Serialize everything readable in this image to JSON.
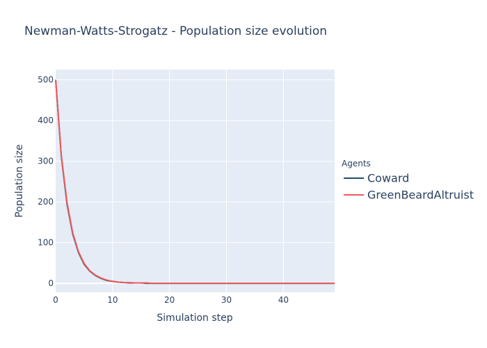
{
  "chart_data": {
    "type": "line",
    "title": "Newman-Watts-Strogatz - Population size evolution",
    "xlabel": "Simulation step",
    "ylabel": "Population size",
    "xlim": [
      0,
      49
    ],
    "ylim": [
      -22,
      525
    ],
    "xticks": [
      0,
      10,
      20,
      30,
      40
    ],
    "yticks": [
      0,
      100,
      200,
      300,
      400,
      500
    ],
    "legend_title": "Agents",
    "legend_position": "right",
    "grid": true,
    "series": [
      {
        "name": "Coward",
        "color": "#1f4e6b",
        "x": [
          0,
          1,
          2,
          3,
          4,
          5,
          6,
          7,
          8,
          9,
          10,
          11,
          12,
          13,
          14,
          15,
          16,
          17,
          18,
          19,
          20,
          21,
          22,
          23,
          24,
          25,
          26,
          27,
          28,
          29,
          30,
          31,
          32,
          33,
          34,
          35,
          36,
          37,
          38,
          39,
          40,
          41,
          42,
          43,
          44,
          45,
          46,
          47,
          48,
          49
        ],
        "y": [
          500,
          311,
          194,
          121,
          76,
          47,
          30,
          19,
          12,
          7,
          5,
          3,
          2,
          1,
          1,
          1,
          0,
          0,
          0,
          0,
          0,
          0,
          0,
          0,
          0,
          0,
          0,
          0,
          0,
          0,
          0,
          0,
          0,
          0,
          0,
          0,
          0,
          0,
          0,
          0,
          0,
          0,
          0,
          0,
          0,
          0,
          0,
          0,
          0,
          0
        ]
      },
      {
        "name": "GreenBeardAltruist",
        "color": "#ef5a5a",
        "x": [
          0,
          1,
          2,
          3,
          4,
          5,
          6,
          7,
          8,
          9,
          10,
          11,
          12,
          13,
          14,
          15,
          16,
          17,
          18,
          19,
          20,
          21,
          22,
          23,
          24,
          25,
          26,
          27,
          28,
          29,
          30,
          31,
          32,
          33,
          34,
          35,
          36,
          37,
          38,
          39,
          40,
          41,
          42,
          43,
          44,
          45,
          46,
          47,
          48,
          49
        ],
        "y": [
          500,
          314,
          198,
          124,
          78,
          49,
          31,
          20,
          13,
          8,
          5,
          3,
          2,
          2,
          1,
          1,
          1,
          0,
          0,
          0,
          0,
          0,
          0,
          0,
          0,
          0,
          0,
          0,
          0,
          0,
          0,
          0,
          0,
          0,
          0,
          0,
          0,
          0,
          0,
          0,
          0,
          0,
          0,
          0,
          0,
          0,
          0,
          0,
          0,
          0
        ]
      }
    ]
  }
}
